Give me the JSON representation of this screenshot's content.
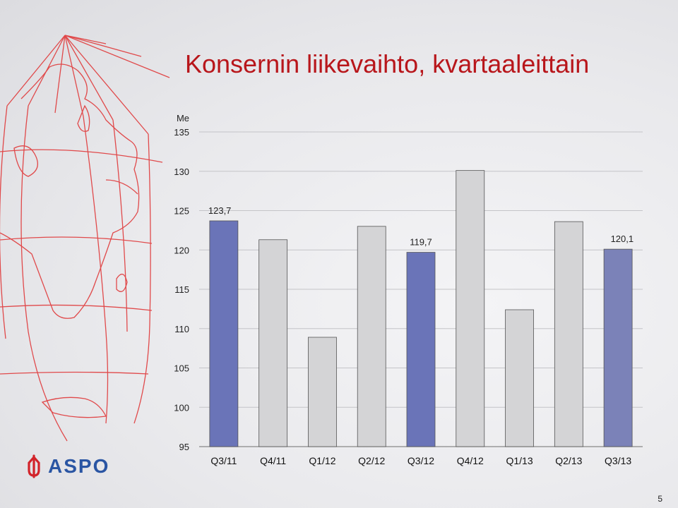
{
  "slide": {
    "title": "Konsernin liikevaihto, kvartaaleittain",
    "page_number": "5",
    "logo_text": "ASPO"
  },
  "colors": {
    "title": "#b8161b",
    "bar_highlight": "#6a74b8",
    "bar_highlight_last": "#7b82b8",
    "bar_default": "#d4d4d6",
    "bar_stroke": "#555555",
    "map_lines": "#e0393a",
    "logo_blue": "#2a55a3",
    "logo_red": "#d2232a"
  },
  "chart_data": {
    "type": "bar",
    "title": "Konsernin liikevaihto, kvartaaleittain",
    "ylabel": "Me",
    "xlabel": "",
    "ylim": [
      95,
      135
    ],
    "yticks": [
      95,
      100,
      105,
      110,
      115,
      120,
      125,
      130,
      135
    ],
    "ytick_labels": [
      "95",
      "100",
      "105",
      "110",
      "115",
      "120",
      "125",
      "130",
      "135"
    ],
    "grid": true,
    "legend": "none",
    "categories": [
      "Q3/11",
      "Q4/11",
      "Q1/12",
      "Q2/12",
      "Q3/12",
      "Q4/12",
      "Q1/13",
      "Q2/13",
      "Q3/13"
    ],
    "values": [
      123.7,
      121.3,
      108.9,
      123.0,
      119.7,
      130.1,
      112.4,
      123.6,
      120.1
    ],
    "highlighted": [
      true,
      false,
      false,
      false,
      true,
      false,
      false,
      false,
      true
    ],
    "data_labels": [
      "123,7",
      "",
      "",
      "",
      "119,7",
      "",
      "",
      "",
      "120,1"
    ]
  }
}
